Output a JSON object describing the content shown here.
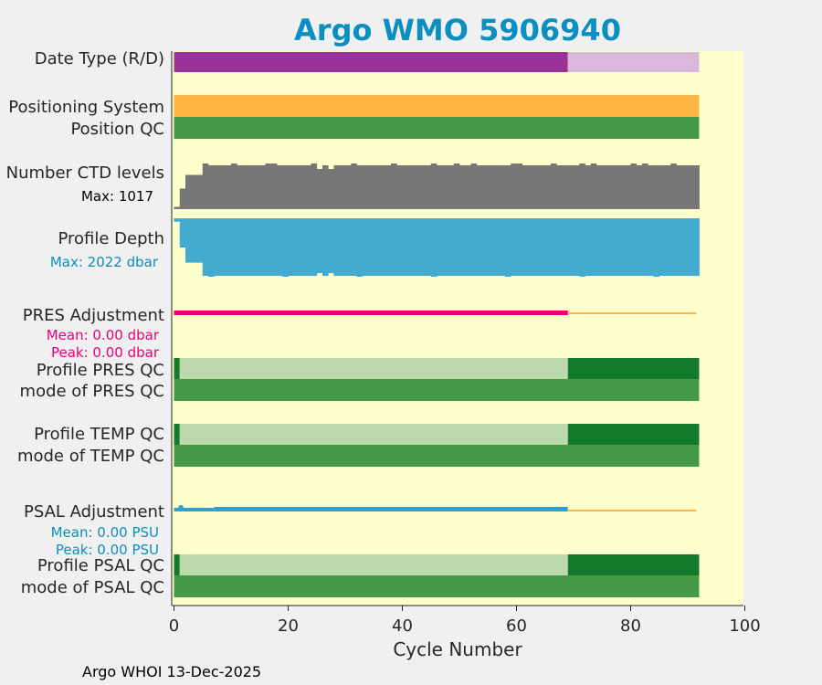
{
  "colors": {
    "title": "#0a8fc0",
    "plot_bg": "#ffffcc",
    "outer_bg": "#f0f0f0",
    "delayed_mode": "#993399",
    "realtime_mode": "#dbb8db",
    "positioning": "#ffb443",
    "qc_good": "#449944",
    "qc_light": "#bcd9ac",
    "qc_dark": "#127a2a",
    "ctd": "#767676",
    "depth": "#42abcf",
    "pres_adj": "#e8007a",
    "psal_adj": "#30a0d0",
    "pending_adj": "#ffb443",
    "text": "#262626",
    "axis": "#262626"
  },
  "chart_data": {
    "type": "bar",
    "title": "Argo WMO 5906940",
    "xlabel": "Cycle Number",
    "xlim": [
      0,
      100
    ],
    "xticks": [
      "0",
      "20",
      "40",
      "60",
      "80",
      "100"
    ],
    "xtick_values": [
      0,
      20,
      40,
      60,
      80,
      100
    ],
    "last_cycle": 92,
    "delayed_mode_last_cycle": 69,
    "rows": [
      {
        "label": "Date Type (R/D)"
      },
      {
        "label": "Positioning System"
      },
      {
        "label": "Position QC"
      },
      {
        "label": "Number CTD levels",
        "note": "Max: 1017",
        "max": 1017
      },
      {
        "label": "Profile Depth",
        "note": "Max: 2022 dbar",
        "max": 2022
      },
      {
        "label": "PRES Adjustment",
        "notes": [
          "Mean: 0.00 dbar",
          "Peak: 0.00 dbar"
        ],
        "mean": 0.0,
        "peak": 0.0
      },
      {
        "label": "Profile PRES QC"
      },
      {
        "label": "mode of PRES QC"
      },
      {
        "label": "Profile TEMP QC"
      },
      {
        "label": "mode of TEMP QC"
      },
      {
        "label": "PSAL Adjustment",
        "notes": [
          "Mean: 0.00 PSU",
          "Peak: 0.00 PSU"
        ],
        "mean": 0.0,
        "peak": 0.0
      },
      {
        "label": "Profile PSAL QC"
      },
      {
        "label": "mode of PSAL QC"
      }
    ]
  },
  "footer": "Argo WHOI 13-Dec-2025"
}
